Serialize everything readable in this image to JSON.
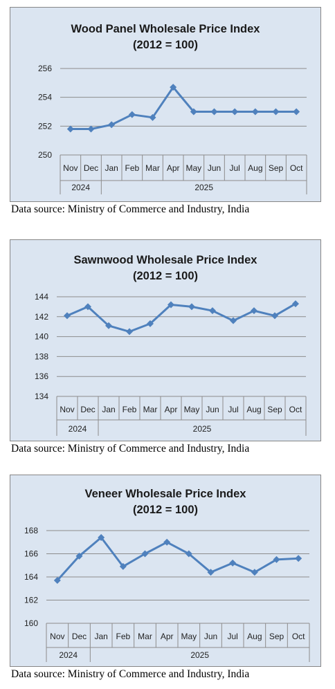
{
  "charts": [
    {
      "title_line1": "Wood Panel Wholesale Price Index",
      "title_line2": "(2012 = 100)",
      "source": "Data source: Ministry of Commerce and Industry, India",
      "chart_data": {
        "type": "line",
        "categories": [
          "Nov",
          "Dec",
          "Jan",
          "Feb",
          "Mar",
          "Apr",
          "May",
          "Jun",
          "Jul",
          "Aug",
          "Sep",
          "Oct"
        ],
        "year_groups": [
          {
            "label": "2024",
            "span": 2
          },
          {
            "label": "2025",
            "span": 10
          }
        ],
        "values": [
          251.8,
          251.8,
          252.1,
          252.8,
          252.6,
          254.7,
          253.0,
          253.0,
          253.0,
          253.0,
          253.0,
          253.0
        ],
        "ylim": [
          250,
          256
        ],
        "yticks": [
          250,
          252,
          254,
          256
        ],
        "color": "#4f81bd",
        "grid": true
      }
    },
    {
      "title_line1": "Sawnwood Wholesale Price Index",
      "title_line2": "(2012 = 100)",
      "source": "Data source: Ministry of Commerce and Industry, India",
      "chart_data": {
        "type": "line",
        "categories": [
          "Nov",
          "Dec",
          "Jan",
          "Feb",
          "Mar",
          "Apr",
          "May",
          "Jun",
          "Jul",
          "Aug",
          "Sep",
          "Oct"
        ],
        "year_groups": [
          {
            "label": "2024",
            "span": 2
          },
          {
            "label": "2025",
            "span": 10
          }
        ],
        "values": [
          142.1,
          143.0,
          141.1,
          140.5,
          141.3,
          143.2,
          143.0,
          142.6,
          141.6,
          142.6,
          142.1,
          143.3
        ],
        "ylim": [
          134,
          144
        ],
        "yticks": [
          134,
          136,
          138,
          140,
          142,
          144
        ],
        "color": "#4f81bd",
        "grid": true
      }
    },
    {
      "title_line1": "Veneer Wholesale Price Index",
      "title_line2": "(2012 = 100)",
      "source": "Data source: Ministry of Commerce and Industry, India",
      "chart_data": {
        "type": "line",
        "categories": [
          "Nov",
          "Dec",
          "Jan",
          "Feb",
          "Mar",
          "Apr",
          "May",
          "Jun",
          "Jul",
          "Aug",
          "Sep",
          "Oct"
        ],
        "year_groups": [
          {
            "label": "2024",
            "span": 2
          },
          {
            "label": "2025",
            "span": 10
          }
        ],
        "values": [
          163.7,
          165.8,
          167.4,
          164.9,
          166.0,
          167.0,
          166.0,
          164.4,
          165.2,
          164.4,
          165.5,
          165.6
        ],
        "ylim": [
          160,
          168
        ],
        "yticks": [
          160,
          162,
          164,
          166,
          168
        ],
        "color": "#4f81bd",
        "grid": true
      }
    }
  ]
}
